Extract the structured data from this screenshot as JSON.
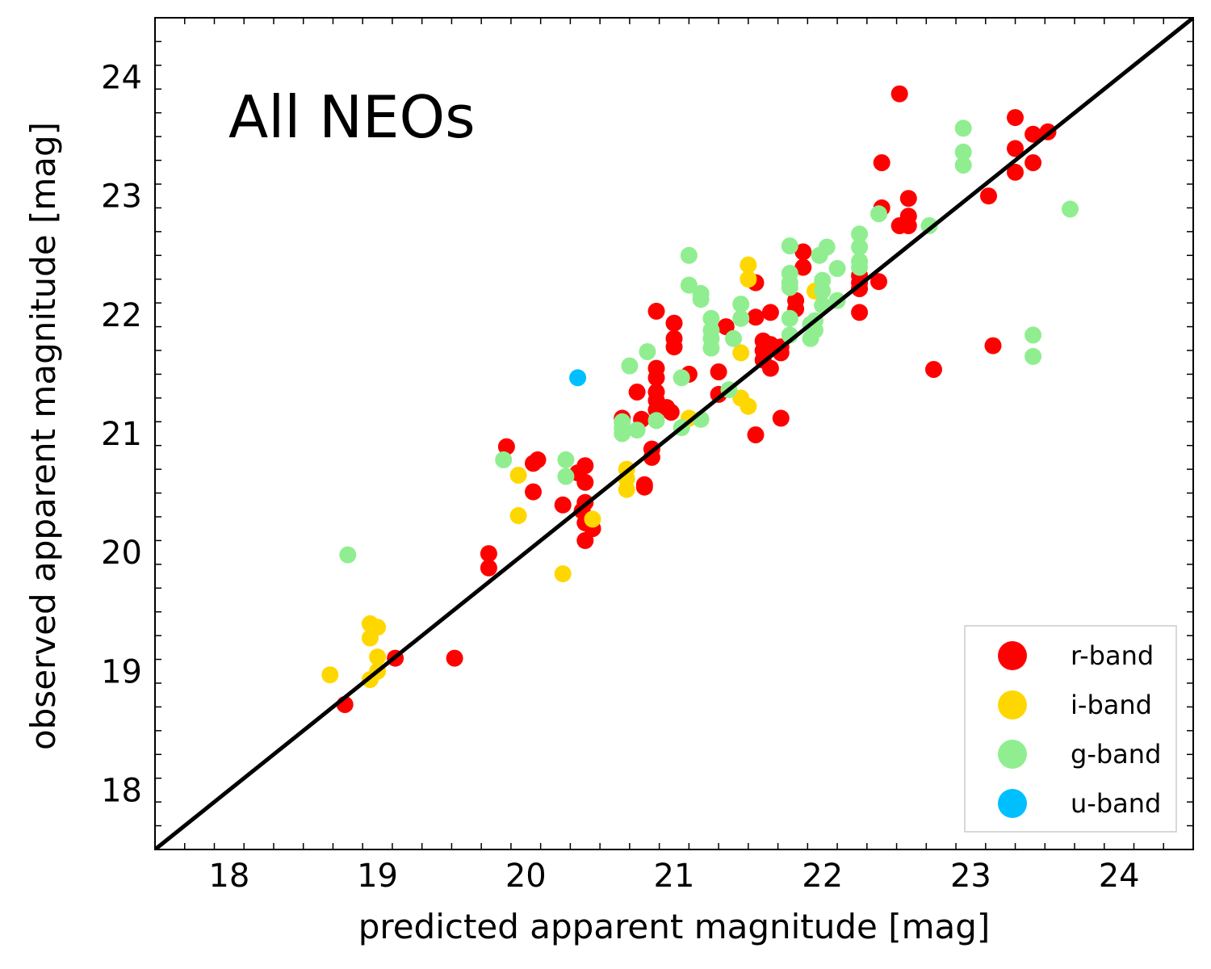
{
  "chart_data": {
    "type": "scatter",
    "annotation": "All NEOs",
    "xlabel": "predicted apparent magnitude [mag]",
    "ylabel": "observed apparent magnitude [mag]",
    "xlim": [
      17.5,
      24.5
    ],
    "ylim": [
      17.5,
      24.5
    ],
    "xticks": [
      18,
      19,
      20,
      21,
      22,
      23,
      24
    ],
    "yticks": [
      18,
      19,
      20,
      21,
      22,
      23,
      24
    ],
    "xtick_labels": [
      "18",
      "19",
      "20",
      "21",
      "22",
      "23",
      "24"
    ],
    "ytick_labels": [
      "18",
      "19",
      "20",
      "21",
      "22",
      "23",
      "24"
    ],
    "minor_tick_step": 0.2,
    "grid": false,
    "legend_position": "bottom-right",
    "reference_line": {
      "name": "one-to-one",
      "x": [
        17.5,
        24.5
      ],
      "y": [
        17.5,
        24.5
      ],
      "color": "#000000"
    },
    "series": [
      {
        "name": "r-band",
        "color": "#ff0000",
        "points": [
          [
            18.78,
            18.72
          ],
          [
            19.12,
            19.11
          ],
          [
            19.52,
            19.11
          ],
          [
            19.75,
            19.99
          ],
          [
            19.75,
            19.87
          ],
          [
            19.87,
            20.89
          ],
          [
            20.05,
            20.75
          ],
          [
            20.08,
            20.78
          ],
          [
            20.05,
            20.51
          ],
          [
            20.25,
            20.4
          ],
          [
            20.35,
            20.67
          ],
          [
            20.4,
            20.73
          ],
          [
            20.4,
            20.59
          ],
          [
            20.4,
            20.42
          ],
          [
            20.38,
            20.35
          ],
          [
            20.4,
            20.25
          ],
          [
            20.45,
            20.2
          ],
          [
            20.4,
            20.1
          ],
          [
            20.65,
            21.13
          ],
          [
            20.75,
            21.35
          ],
          [
            20.78,
            21.12
          ],
          [
            20.8,
            20.57
          ],
          [
            20.8,
            20.55
          ],
          [
            20.85,
            20.87
          ],
          [
            20.85,
            20.8
          ],
          [
            20.88,
            22.03
          ],
          [
            20.88,
            21.55
          ],
          [
            20.88,
            21.47
          ],
          [
            20.88,
            21.35
          ],
          [
            20.88,
            21.28
          ],
          [
            20.88,
            21.2
          ],
          [
            20.95,
            21.22
          ],
          [
            20.98,
            21.18
          ],
          [
            21.0,
            21.93
          ],
          [
            21.0,
            21.8
          ],
          [
            21.0,
            21.73
          ],
          [
            21.1,
            21.5
          ],
          [
            21.3,
            21.52
          ],
          [
            21.3,
            21.33
          ],
          [
            21.35,
            21.9
          ],
          [
            21.55,
            22.27
          ],
          [
            21.55,
            21.98
          ],
          [
            21.55,
            20.99
          ],
          [
            21.6,
            21.78
          ],
          [
            21.6,
            21.7
          ],
          [
            21.6,
            21.62
          ],
          [
            21.65,
            22.02
          ],
          [
            21.65,
            21.75
          ],
          [
            21.65,
            21.55
          ],
          [
            21.72,
            21.73
          ],
          [
            21.72,
            21.68
          ],
          [
            21.72,
            21.13
          ],
          [
            21.82,
            22.12
          ],
          [
            21.82,
            22.05
          ],
          [
            21.87,
            22.53
          ],
          [
            21.87,
            22.4
          ],
          [
            22.25,
            22.33
          ],
          [
            22.25,
            22.27
          ],
          [
            22.25,
            22.22
          ],
          [
            22.25,
            22.02
          ],
          [
            22.38,
            22.28
          ],
          [
            22.4,
            23.28
          ],
          [
            22.4,
            22.9
          ],
          [
            22.52,
            23.86
          ],
          [
            22.52,
            22.75
          ],
          [
            22.58,
            22.98
          ],
          [
            22.58,
            22.83
          ],
          [
            22.58,
            22.75
          ],
          [
            22.75,
            21.54
          ],
          [
            23.12,
            23.0
          ],
          [
            23.15,
            21.74
          ],
          [
            23.3,
            23.66
          ],
          [
            23.3,
            23.4
          ],
          [
            23.3,
            23.2
          ],
          [
            23.42,
            23.52
          ],
          [
            23.42,
            23.28
          ],
          [
            23.52,
            23.54
          ]
        ]
      },
      {
        "name": "i-band",
        "color": "#ffd700",
        "points": [
          [
            18.68,
            18.97
          ],
          [
            18.95,
            19.4
          ],
          [
            18.95,
            19.28
          ],
          [
            18.95,
            18.93
          ],
          [
            19.0,
            19.37
          ],
          [
            19.0,
            19.12
          ],
          [
            19.0,
            19.0
          ],
          [
            19.95,
            20.65
          ],
          [
            19.95,
            20.31
          ],
          [
            20.25,
            19.82
          ],
          [
            20.45,
            20.28
          ],
          [
            20.68,
            20.7
          ],
          [
            20.68,
            20.62
          ],
          [
            20.68,
            20.53
          ],
          [
            21.1,
            21.13
          ],
          [
            21.45,
            21.68
          ],
          [
            21.45,
            21.3
          ],
          [
            21.5,
            22.42
          ],
          [
            21.5,
            22.3
          ],
          [
            21.5,
            21.23
          ],
          [
            21.95,
            22.2
          ]
        ]
      },
      {
        "name": "g-band",
        "color": "#90ee90",
        "points": [
          [
            18.8,
            19.98
          ],
          [
            19.85,
            20.78
          ],
          [
            20.27,
            20.78
          ],
          [
            20.27,
            20.64
          ],
          [
            20.65,
            21.1
          ],
          [
            20.65,
            21.05
          ],
          [
            20.65,
            21.0
          ],
          [
            20.7,
            21.57
          ],
          [
            20.75,
            21.03
          ],
          [
            20.82,
            21.69
          ],
          [
            20.88,
            21.11
          ],
          [
            21.05,
            21.47
          ],
          [
            21.05,
            21.05
          ],
          [
            21.1,
            22.5
          ],
          [
            21.1,
            22.25
          ],
          [
            21.18,
            22.18
          ],
          [
            21.18,
            22.13
          ],
          [
            21.18,
            21.12
          ],
          [
            21.25,
            21.97
          ],
          [
            21.25,
            21.87
          ],
          [
            21.25,
            21.8
          ],
          [
            21.25,
            21.72
          ],
          [
            21.37,
            21.37
          ],
          [
            21.4,
            21.8
          ],
          [
            21.45,
            22.09
          ],
          [
            21.45,
            21.97
          ],
          [
            21.78,
            22.58
          ],
          [
            21.78,
            22.35
          ],
          [
            21.78,
            22.27
          ],
          [
            21.78,
            22.23
          ],
          [
            21.78,
            21.97
          ],
          [
            21.78,
            21.83
          ],
          [
            21.92,
            21.92
          ],
          [
            21.92,
            21.8
          ],
          [
            21.95,
            21.95
          ],
          [
            21.95,
            21.87
          ],
          [
            21.98,
            22.5
          ],
          [
            22.0,
            22.29
          ],
          [
            22.0,
            22.2
          ],
          [
            22.0,
            22.08
          ],
          [
            22.03,
            22.57
          ],
          [
            22.1,
            22.39
          ],
          [
            22.1,
            22.12
          ],
          [
            22.25,
            22.68
          ],
          [
            22.25,
            22.57
          ],
          [
            22.25,
            22.45
          ],
          [
            22.25,
            22.4
          ],
          [
            22.38,
            22.85
          ],
          [
            22.72,
            22.75
          ],
          [
            22.95,
            23.57
          ],
          [
            22.95,
            23.37
          ],
          [
            22.95,
            23.26
          ],
          [
            23.42,
            21.83
          ],
          [
            23.42,
            21.65
          ],
          [
            23.67,
            22.89
          ]
        ]
      },
      {
        "name": "u-band",
        "color": "#00bfff",
        "points": [
          [
            20.35,
            21.47
          ]
        ]
      }
    ]
  }
}
